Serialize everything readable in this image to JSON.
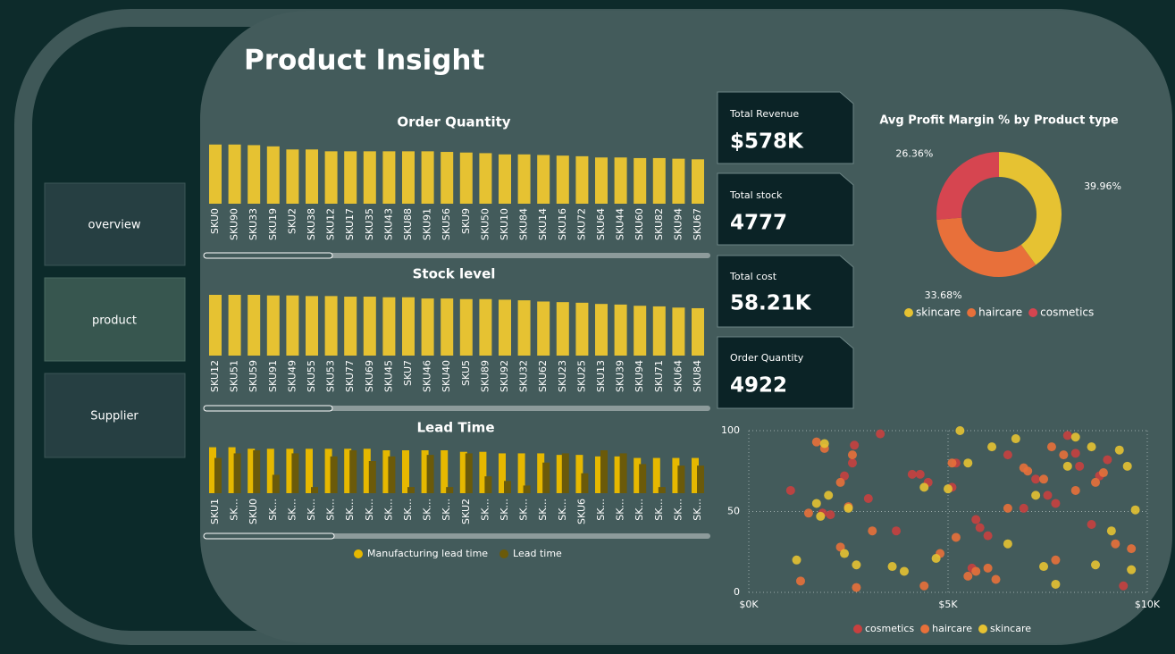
{
  "title": "Product Insight",
  "nav": [
    "overview",
    "product",
    "Supplier"
  ],
  "kpis": [
    {
      "label": "Total Revenue",
      "value": "$578K"
    },
    {
      "label": "Total stock",
      "value": "4777"
    },
    {
      "label": "Total cost",
      "value": "58.21K"
    },
    {
      "label": "Order Quantity",
      "value": "4922"
    }
  ],
  "chart_data": [
    {
      "type": "bar",
      "title": "Order Quantity",
      "color": "#e6c232",
      "ylim": [
        0,
        100
      ],
      "categories": [
        "SKU0",
        "SKU90",
        "SKU33",
        "SKU19",
        "SKU2",
        "SKU38",
        "SKU12",
        "SKU17",
        "SKU35",
        "SKU43",
        "SKU88",
        "SKU91",
        "SKU56",
        "SKU9",
        "SKU50",
        "SKU10",
        "SKU84",
        "SKU14",
        "SKU16",
        "SKU72",
        "SKU64",
        "SKU44",
        "SKU60",
        "SKU82",
        "SKU94",
        "SKU67"
      ],
      "values": [
        96,
        96,
        95,
        93,
        88,
        88,
        85,
        85,
        85,
        85,
        85,
        85,
        84,
        83,
        82,
        80,
        80,
        79,
        78,
        77,
        75,
        75,
        74,
        74,
        73,
        72
      ]
    },
    {
      "type": "bar",
      "title": "Stock level",
      "color": "#e6c232",
      "ylim": [
        0,
        100
      ],
      "categories": [
        "SKU12",
        "SKU51",
        "SKU59",
        "SKU91",
        "SKU49",
        "SKU55",
        "SKU53",
        "SKU77",
        "SKU69",
        "SKU45",
        "SKU7",
        "SKU46",
        "SKU40",
        "SKU5",
        "SKU89",
        "SKU92",
        "SKU32",
        "SKU62",
        "SKU23",
        "SKU25",
        "SKU13",
        "SKU39",
        "SKU94",
        "SKU71",
        "SKU64",
        "SKU84"
      ],
      "values": [
        100,
        100,
        100,
        99,
        99,
        98,
        98,
        97,
        97,
        96,
        96,
        94,
        94,
        93,
        93,
        92,
        91,
        89,
        88,
        87,
        85,
        84,
        82,
        81,
        79,
        78
      ]
    },
    {
      "type": "grouped_bar",
      "title": "Lead Time",
      "ylim": [
        0,
        35
      ],
      "categories": [
        "SKU1",
        "SK...",
        "SKU0",
        "SK...",
        "SK...",
        "SK...",
        "SK...",
        "SK...",
        "SK...",
        "SK...",
        "SK...",
        "SK...",
        "SK...",
        "SKU2",
        "SK...",
        "SK...",
        "SK...",
        "SK...",
        "SK...",
        "SKU6",
        "SK...",
        "SK...",
        "SK...",
        "SK...",
        "SK...",
        "SK..."
      ],
      "series": [
        {
          "name": "Manufacturing lead time",
          "color": "#e6b800",
          "values": [
            30,
            30,
            29,
            29,
            29,
            29,
            29,
            29,
            29,
            28,
            28,
            28,
            28,
            27,
            27,
            26,
            26,
            26,
            25,
            25,
            24,
            24,
            23,
            23,
            23,
            23
          ]
        },
        {
          "name": "Lead time",
          "color": "#6b5a0a",
          "values": [
            23,
            26,
            28,
            12,
            26,
            4,
            24,
            28,
            21,
            24,
            4,
            25,
            4,
            26,
            11,
            8,
            5,
            20,
            26,
            13,
            28,
            26,
            19,
            4,
            18,
            18
          ]
        }
      ]
    },
    {
      "type": "pie",
      "title": "Avg Profit Margin % by Product type",
      "categories": [
        "skincare",
        "haircare",
        "cosmetics"
      ],
      "values": [
        39.96,
        33.68,
        26.36
      ],
      "value_labels": [
        "39.96%",
        "33.68%",
        "26.36%"
      ],
      "colors": [
        "#e6c232",
        "#e8703a",
        "#d64550"
      ]
    },
    {
      "type": "scatter",
      "xlim": [
        0,
        10000
      ],
      "ylim": [
        0,
        100
      ],
      "grid": true,
      "xticks": [
        {
          "value": 0,
          "label": "$0K"
        },
        {
          "value": 5000,
          "label": "$5K"
        },
        {
          "value": 10000,
          "label": "$10K"
        }
      ],
      "yticks": [
        0,
        50,
        100
      ],
      "series": [
        {
          "name": "cosmetics",
          "color": "#c8403f",
          "x": [
            1050,
            1850,
            2050,
            2600,
            2650,
            3000,
            3300,
            4100,
            4300,
            4500,
            5100,
            5200,
            5600,
            5800,
            6500,
            6900,
            7200,
            7500,
            7700,
            8000,
            8300,
            8600,
            8800,
            9000,
            9400,
            6000,
            2400,
            3700,
            8200,
            5700
          ],
          "y": [
            63,
            49,
            48,
            80,
            91,
            58,
            98,
            73,
            73,
            68,
            65,
            80,
            15,
            40,
            85,
            52,
            70,
            60,
            55,
            97,
            78,
            42,
            72,
            82,
            4,
            35,
            72,
            38,
            86,
            45
          ]
        },
        {
          "name": "haircare",
          "color": "#e8703a",
          "x": [
            1300,
            1500,
            1900,
            2300,
            2500,
            2600,
            2700,
            3100,
            4400,
            4800,
            5200,
            5500,
            5700,
            6000,
            6500,
            6900,
            7000,
            7400,
            7700,
            7900,
            8200,
            8700,
            8900,
            9200,
            9600,
            1700,
            2300,
            5100,
            6200,
            7600
          ],
          "y": [
            7,
            49,
            89,
            68,
            53,
            85,
            3,
            38,
            4,
            24,
            34,
            10,
            13,
            15,
            52,
            77,
            75,
            70,
            20,
            85,
            63,
            68,
            74,
            30,
            27,
            93,
            28,
            80,
            8,
            90
          ]
        },
        {
          "name": "skincare",
          "color": "#e6c232",
          "x": [
            1200,
            1700,
            1800,
            1900,
            2000,
            2400,
            2500,
            2700,
            3600,
            3900,
            4400,
            4700,
            5000,
            5300,
            5500,
            6100,
            6500,
            6700,
            7200,
            7400,
            7700,
            8000,
            8200,
            8600,
            8700,
            9100,
            9300,
            9500,
            9600,
            9700
          ],
          "y": [
            20,
            55,
            47,
            92,
            60,
            24,
            52,
            17,
            16,
            13,
            65,
            21,
            64,
            100,
            80,
            90,
            30,
            95,
            60,
            16,
            5,
            78,
            96,
            90,
            17,
            38,
            88,
            78,
            14,
            51
          ]
        }
      ]
    }
  ]
}
